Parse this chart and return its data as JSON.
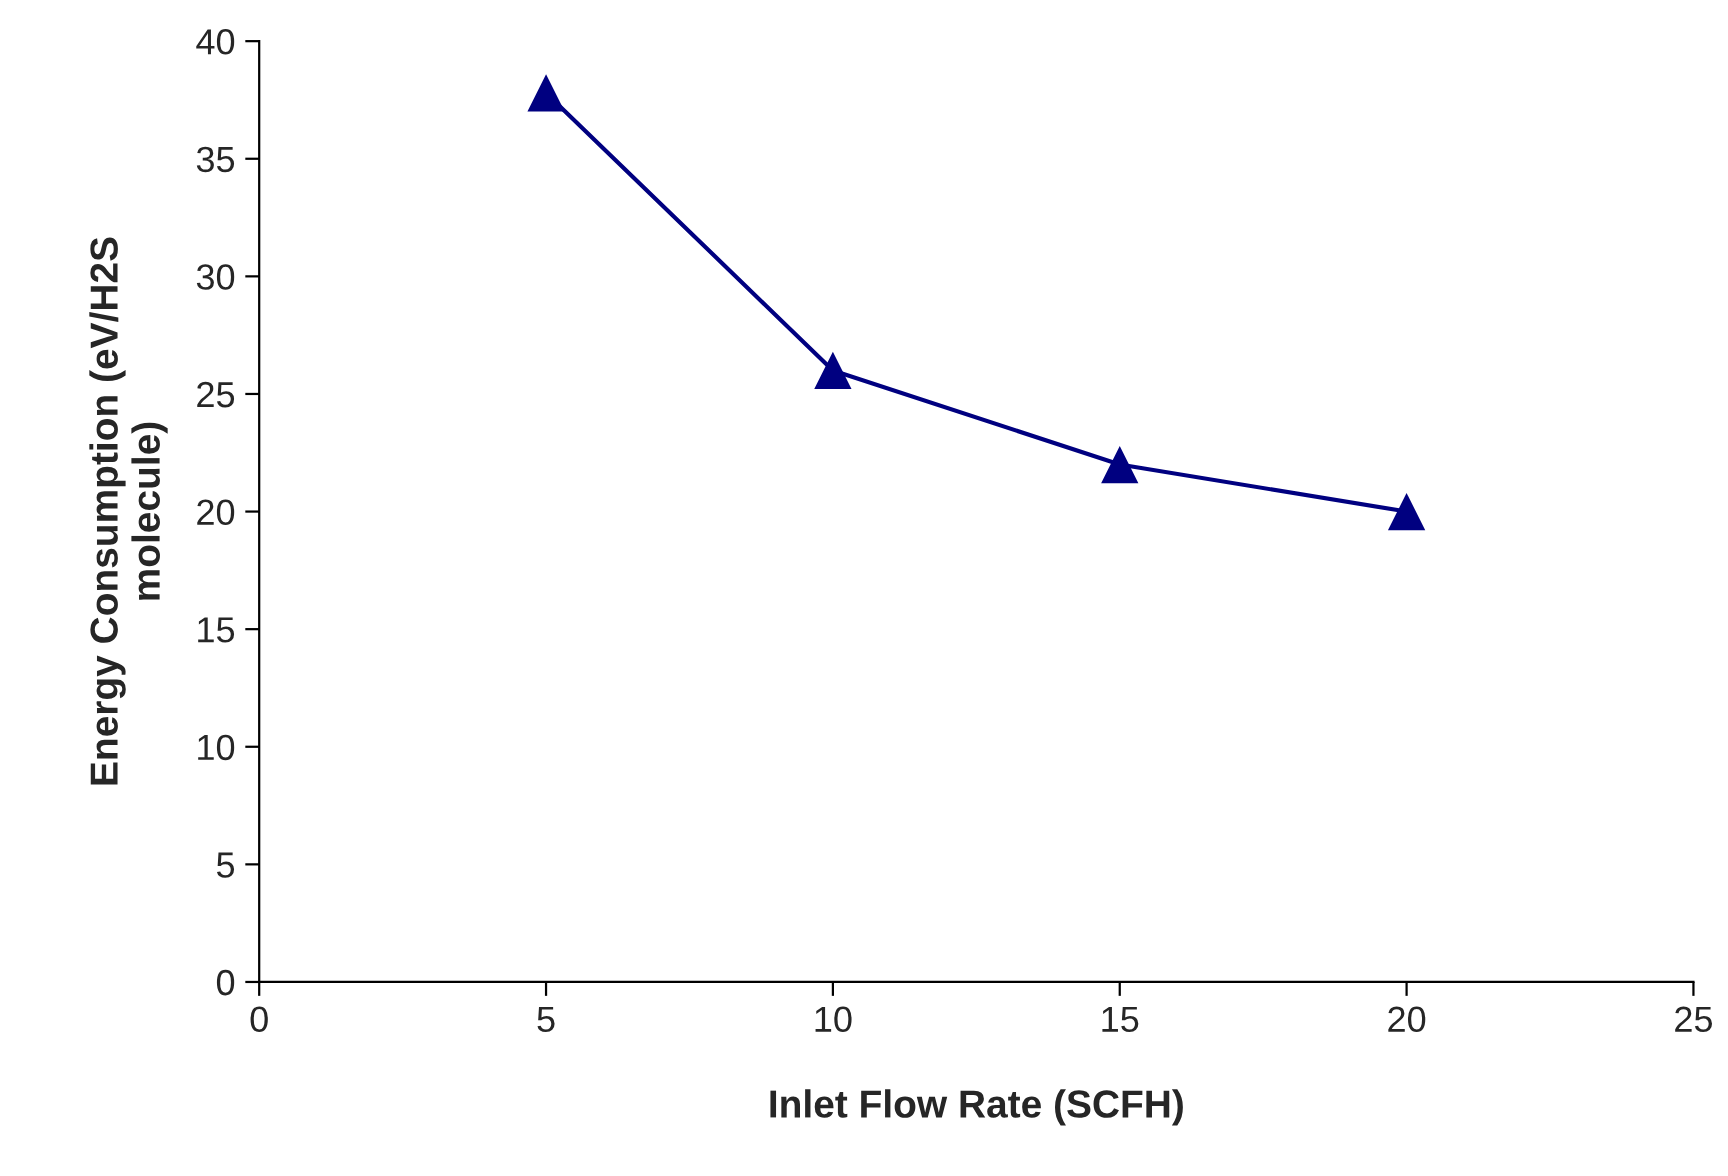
{
  "chart_data": {
    "type": "line",
    "xlabel": "Inlet Flow Rate (SCFH)",
    "ylabel": "Energy Consumption (eV/H2S\nmolecule)",
    "x": [
      5,
      10,
      15,
      20
    ],
    "series": [
      {
        "color": "#000080",
        "values": [
          37.8,
          26,
          22,
          20
        ]
      }
    ],
    "xlim": [
      0,
      25
    ],
    "xticks": [
      0,
      5,
      10,
      15,
      20,
      25
    ],
    "ylim": [
      0,
      40
    ],
    "yticks": [
      0,
      5,
      10,
      15,
      20,
      25,
      30,
      35,
      40
    ],
    "marker": "triangle",
    "line_style": "solid",
    "grid": false
  }
}
